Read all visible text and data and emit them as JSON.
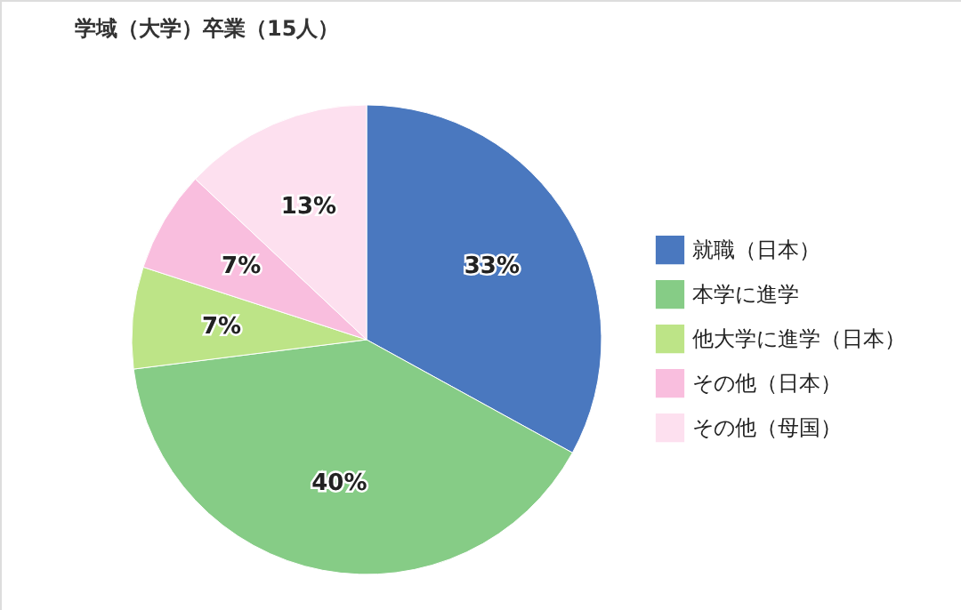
{
  "chart_data": {
    "type": "pie",
    "title": "学域（大学）卒業（15人）",
    "categories": [
      "就職（日本）",
      "本学に進学",
      "他大学に進学（日本）",
      "その他（日本）",
      "その他（母国）"
    ],
    "values": [
      33,
      40,
      7,
      7,
      13
    ],
    "colors": [
      "#4a78bf",
      "#86cc86",
      "#bde487",
      "#f9bede",
      "#fde0ef"
    ],
    "value_labels": [
      "33%",
      "40%",
      "7%",
      "7%",
      "13%"
    ],
    "legend": "right"
  }
}
